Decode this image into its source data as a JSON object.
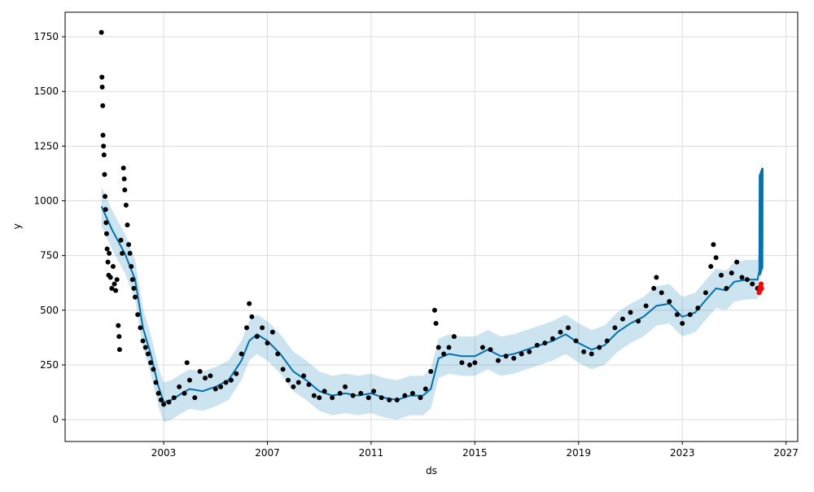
{
  "chart_data": {
    "type": "line",
    "title": "",
    "xlabel": "ds",
    "ylabel": "y",
    "xlim": [
      1999.2,
      2027.45
    ],
    "ylim": [
      -100,
      1862
    ],
    "xticks": [
      2003,
      2007,
      2011,
      2015,
      2019,
      2023,
      2027
    ],
    "yticks": [
      0,
      250,
      500,
      750,
      1000,
      1250,
      1500,
      1750
    ],
    "grid": true,
    "colors": {
      "forecast": "#0072B2",
      "band": "#0072B2",
      "observed": "#000000",
      "highlight": "#ff0000"
    },
    "interval_halfwidth": 90,
    "forecast": [
      [
        2000.6,
        975
      ],
      [
        2001.0,
        870
      ],
      [
        2001.5,
        760
      ],
      [
        2001.9,
        640
      ],
      [
        2002.2,
        420
      ],
      [
        2002.5,
        300
      ],
      [
        2002.8,
        150
      ],
      [
        2003.0,
        80
      ],
      [
        2003.3,
        90
      ],
      [
        2003.7,
        120
      ],
      [
        2004.0,
        140
      ],
      [
        2004.5,
        130
      ],
      [
        2005.0,
        150
      ],
      [
        2005.5,
        180
      ],
      [
        2006.0,
        270
      ],
      [
        2006.3,
        360
      ],
      [
        2006.6,
        390
      ],
      [
        2007.0,
        360
      ],
      [
        2007.5,
        300
      ],
      [
        2008.0,
        220
      ],
      [
        2008.5,
        180
      ],
      [
        2009.0,
        130
      ],
      [
        2009.5,
        110
      ],
      [
        2010.0,
        120
      ],
      [
        2010.5,
        110
      ],
      [
        2011.0,
        120
      ],
      [
        2011.5,
        100
      ],
      [
        2012.0,
        90
      ],
      [
        2012.5,
        110
      ],
      [
        2013.0,
        110
      ],
      [
        2013.3,
        140
      ],
      [
        2013.6,
        280
      ],
      [
        2014.0,
        300
      ],
      [
        2014.5,
        290
      ],
      [
        2015.0,
        290
      ],
      [
        2015.5,
        320
      ],
      [
        2016.0,
        290
      ],
      [
        2016.5,
        300
      ],
      [
        2017.0,
        320
      ],
      [
        2017.5,
        340
      ],
      [
        2018.0,
        360
      ],
      [
        2018.5,
        390
      ],
      [
        2019.0,
        350
      ],
      [
        2019.5,
        320
      ],
      [
        2020.0,
        340
      ],
      [
        2020.5,
        400
      ],
      [
        2021.0,
        440
      ],
      [
        2021.5,
        470
      ],
      [
        2022.0,
        520
      ],
      [
        2022.5,
        530
      ],
      [
        2023.0,
        470
      ],
      [
        2023.5,
        490
      ],
      [
        2024.0,
        560
      ],
      [
        2024.3,
        600
      ],
      [
        2024.7,
        590
      ],
      [
        2025.0,
        630
      ],
      [
        2025.5,
        640
      ],
      [
        2025.9,
        640
      ],
      [
        2025.97,
        680
      ],
      [
        2025.98,
        1120
      ],
      [
        2026.0,
        660
      ],
      [
        2026.01,
        1130
      ],
      [
        2026.03,
        670
      ],
      [
        2026.04,
        1140
      ],
      [
        2026.06,
        680
      ],
      [
        2026.07,
        1150
      ],
      [
        2026.09,
        690
      ],
      [
        2026.1,
        1150
      ]
    ],
    "observed": [
      [
        2000.6,
        1770
      ],
      [
        2000.62,
        1565
      ],
      [
        2000.63,
        1520
      ],
      [
        2000.65,
        1435
      ],
      [
        2000.66,
        1300
      ],
      [
        2000.68,
        1250
      ],
      [
        2000.7,
        1210
      ],
      [
        2000.72,
        1120
      ],
      [
        2000.74,
        1020
      ],
      [
        2000.76,
        960
      ],
      [
        2000.78,
        900
      ],
      [
        2000.8,
        850
      ],
      [
        2000.82,
        780
      ],
      [
        2000.85,
        720
      ],
      [
        2000.88,
        660
      ],
      [
        2000.9,
        760
      ],
      [
        2000.95,
        650
      ],
      [
        2001.0,
        600
      ],
      [
        2001.05,
        700
      ],
      [
        2001.1,
        620
      ],
      [
        2001.15,
        590
      ],
      [
        2001.2,
        640
      ],
      [
        2001.25,
        430
      ],
      [
        2001.28,
        380
      ],
      [
        2001.3,
        320
      ],
      [
        2001.35,
        820
      ],
      [
        2001.4,
        760
      ],
      [
        2001.45,
        1150
      ],
      [
        2001.48,
        1100
      ],
      [
        2001.5,
        1050
      ],
      [
        2001.55,
        980
      ],
      [
        2001.6,
        890
      ],
      [
        2001.65,
        800
      ],
      [
        2001.7,
        760
      ],
      [
        2001.75,
        700
      ],
      [
        2001.8,
        640
      ],
      [
        2001.85,
        600
      ],
      [
        2001.9,
        560
      ],
      [
        2002.0,
        480
      ],
      [
        2002.1,
        420
      ],
      [
        2002.2,
        360
      ],
      [
        2002.3,
        330
      ],
      [
        2002.4,
        300
      ],
      [
        2002.5,
        260
      ],
      [
        2002.6,
        230
      ],
      [
        2002.7,
        170
      ],
      [
        2002.8,
        120
      ],
      [
        2002.9,
        90
      ],
      [
        2003.0,
        70
      ],
      [
        2003.2,
        80
      ],
      [
        2003.4,
        100
      ],
      [
        2003.6,
        150
      ],
      [
        2003.8,
        120
      ],
      [
        2003.9,
        260
      ],
      [
        2004.0,
        180
      ],
      [
        2004.2,
        100
      ],
      [
        2004.4,
        220
      ],
      [
        2004.6,
        190
      ],
      [
        2004.8,
        200
      ],
      [
        2005.0,
        140
      ],
      [
        2005.2,
        150
      ],
      [
        2005.4,
        170
      ],
      [
        2005.6,
        180
      ],
      [
        2005.8,
        210
      ],
      [
        2006.0,
        300
      ],
      [
        2006.2,
        420
      ],
      [
        2006.3,
        530
      ],
      [
        2006.4,
        470
      ],
      [
        2006.6,
        380
      ],
      [
        2006.8,
        420
      ],
      [
        2007.0,
        350
      ],
      [
        2007.2,
        400
      ],
      [
        2007.4,
        300
      ],
      [
        2007.6,
        230
      ],
      [
        2007.8,
        180
      ],
      [
        2008.0,
        150
      ],
      [
        2008.2,
        170
      ],
      [
        2008.4,
        200
      ],
      [
        2008.6,
        160
      ],
      [
        2008.8,
        110
      ],
      [
        2009.0,
        100
      ],
      [
        2009.2,
        130
      ],
      [
        2009.5,
        100
      ],
      [
        2009.8,
        120
      ],
      [
        2010.0,
        150
      ],
      [
        2010.3,
        110
      ],
      [
        2010.6,
        120
      ],
      [
        2010.9,
        100
      ],
      [
        2011.1,
        130
      ],
      [
        2011.4,
        100
      ],
      [
        2011.7,
        90
      ],
      [
        2012.0,
        90
      ],
      [
        2012.3,
        110
      ],
      [
        2012.6,
        120
      ],
      [
        2012.9,
        100
      ],
      [
        2013.1,
        140
      ],
      [
        2013.3,
        220
      ],
      [
        2013.45,
        500
      ],
      [
        2013.5,
        440
      ],
      [
        2013.6,
        330
      ],
      [
        2013.8,
        300
      ],
      [
        2014.0,
        330
      ],
      [
        2014.2,
        380
      ],
      [
        2014.5,
        260
      ],
      [
        2014.8,
        250
      ],
      [
        2015.0,
        260
      ],
      [
        2015.3,
        330
      ],
      [
        2015.6,
        320
      ],
      [
        2015.9,
        270
      ],
      [
        2016.2,
        290
      ],
      [
        2016.5,
        280
      ],
      [
        2016.8,
        300
      ],
      [
        2017.1,
        310
      ],
      [
        2017.4,
        340
      ],
      [
        2017.7,
        350
      ],
      [
        2018.0,
        370
      ],
      [
        2018.3,
        400
      ],
      [
        2018.6,
        420
      ],
      [
        2018.9,
        360
      ],
      [
        2019.2,
        310
      ],
      [
        2019.5,
        300
      ],
      [
        2019.8,
        330
      ],
      [
        2020.1,
        360
      ],
      [
        2020.4,
        420
      ],
      [
        2020.7,
        460
      ],
      [
        2021.0,
        490
      ],
      [
        2021.3,
        450
      ],
      [
        2021.6,
        520
      ],
      [
        2021.9,
        600
      ],
      [
        2022.0,
        650
      ],
      [
        2022.2,
        580
      ],
      [
        2022.5,
        540
      ],
      [
        2022.8,
        480
      ],
      [
        2023.0,
        440
      ],
      [
        2023.3,
        480
      ],
      [
        2023.6,
        510
      ],
      [
        2023.9,
        580
      ],
      [
        2024.1,
        700
      ],
      [
        2024.2,
        800
      ],
      [
        2024.3,
        740
      ],
      [
        2024.5,
        660
      ],
      [
        2024.7,
        600
      ],
      [
        2024.9,
        670
      ],
      [
        2025.1,
        720
      ],
      [
        2025.3,
        650
      ],
      [
        2025.5,
        640
      ],
      [
        2025.7,
        620
      ],
      [
        2025.9,
        600
      ]
    ],
    "highlighted": [
      [
        2025.96,
        580
      ],
      [
        2025.98,
        600
      ],
      [
        2026.0,
        590
      ],
      [
        2026.02,
        610
      ],
      [
        2026.04,
        620
      ],
      [
        2026.06,
        600
      ]
    ]
  }
}
